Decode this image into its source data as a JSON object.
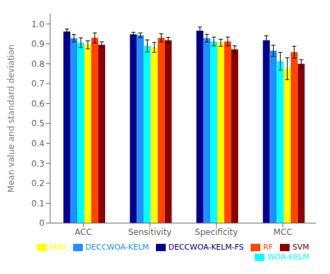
{
  "chart_data": {
    "type": "bar",
    "categories": [
      "ACC",
      "Sensitivity",
      "Specificity",
      "MCC"
    ],
    "series": [
      {
        "name": "DECCWOA-KELM-FS",
        "color": "#00008B",
        "values": [
          0.962,
          0.948,
          0.966,
          0.918
        ],
        "errors": [
          0.012,
          0.01,
          0.018,
          0.022
        ]
      },
      {
        "name": "DECCWOA-KELM",
        "color": "#1E90FF",
        "values": [
          0.928,
          0.943,
          0.928,
          0.865
        ],
        "errors": [
          0.018,
          0.012,
          0.02,
          0.028
        ]
      },
      {
        "name": "WOA-KELM",
        "color": "#00FFFF",
        "values": [
          0.905,
          0.89,
          0.912,
          0.812
        ],
        "errors": [
          0.025,
          0.03,
          0.022,
          0.045
        ]
      },
      {
        "name": "ANN",
        "color": "#FFFF00",
        "values": [
          0.895,
          0.882,
          0.905,
          0.775
        ],
        "errors": [
          0.02,
          0.025,
          0.018,
          0.055
        ]
      },
      {
        "name": "RF",
        "color": "#FF4500",
        "values": [
          0.93,
          0.93,
          0.912,
          0.858
        ],
        "errors": [
          0.025,
          0.02,
          0.022,
          0.03
        ]
      },
      {
        "name": "SVM",
        "color": "#8B0000",
        "values": [
          0.895,
          0.918,
          0.872,
          0.8
        ],
        "errors": [
          0.015,
          0.015,
          0.018,
          0.02
        ]
      }
    ],
    "ylabel": "Mean value and standard deviation",
    "ylim": [
      0,
      1.05
    ],
    "yticks": [
      0,
      0.1,
      0.2,
      0.3,
      0.4,
      0.5,
      0.6,
      0.7,
      0.8,
      0.9,
      {
        "value": 1,
        "label": "1.0"
      }
    ],
    "grid": false,
    "legend": "lower right"
  }
}
